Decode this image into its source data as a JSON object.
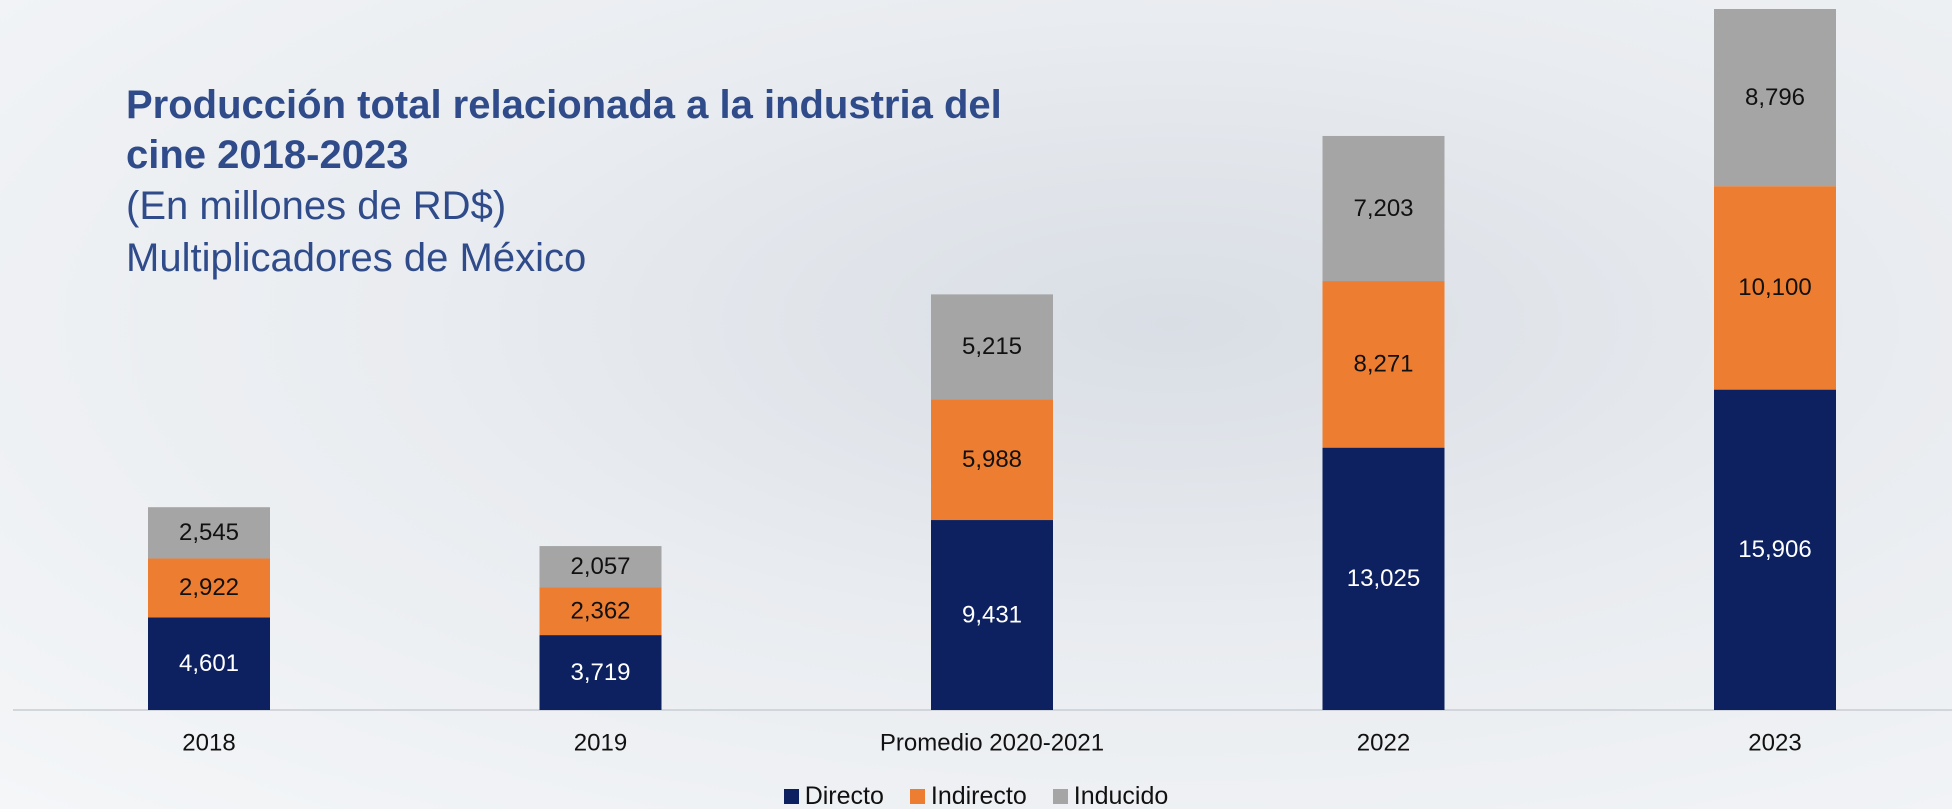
{
  "chart_data": {
    "type": "stacked_bar",
    "title": "Producción total relacionada a la industria del cine 2018-2023",
    "subtitle": "(En millones de RD$)",
    "note": "Multiplicadores de México",
    "categories": [
      "2018",
      "2019",
      "Promedio 2020-2021",
      "2022",
      "2023"
    ],
    "series": [
      {
        "name": "Directo",
        "color": "#0d2160",
        "values": [
          4601,
          3719,
          9431,
          13025,
          15906
        ],
        "value_labels": [
          "4,601",
          "3,719",
          "9,431",
          "13,025",
          "15,906"
        ]
      },
      {
        "name": "Indirecto",
        "color": "#ed7d31",
        "values": [
          2922,
          2362,
          5988,
          8271,
          10100
        ],
        "value_labels": [
          "2,922",
          "2,362",
          "5,988",
          "8,271",
          "10,100"
        ]
      },
      {
        "name": "Inducido",
        "color": "#a5a5a5",
        "values": [
          2545,
          2057,
          5215,
          7203,
          8796
        ],
        "value_labels": [
          "2,545",
          "2,057",
          "5,215",
          "7,203",
          "8,796"
        ]
      }
    ],
    "legend": "bottom"
  }
}
